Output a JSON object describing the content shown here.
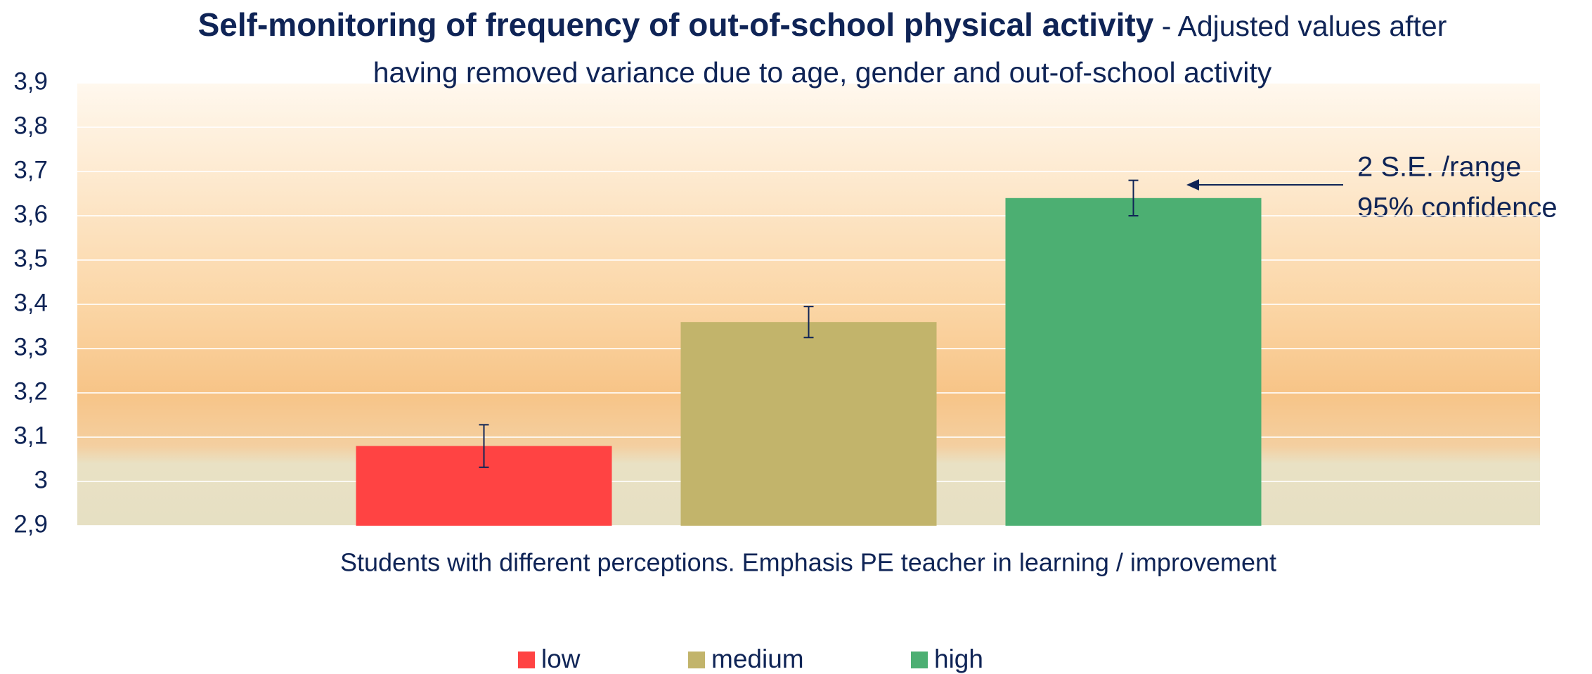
{
  "chart_data": {
    "type": "bar",
    "title": "Self-monitoring of frequency of out-of-school physical activity",
    "subtitle": "- Adjusted values after having removed variance due to age, gender and out-of-school activity",
    "x_label": "Students with different perceptions. Emphasis PE teacher in learning / improvement",
    "annotation": [
      "2 S.E. /range",
      "95% confidence"
    ],
    "series": [
      {
        "name": "low",
        "color": "#ff4343",
        "values": [
          3.08
        ],
        "errors": [
          0.048
        ]
      },
      {
        "name": "medium",
        "color": "#c2b46b",
        "values": [
          3.36
        ],
        "errors": [
          0.035
        ]
      },
      {
        "name": "high",
        "color": "#4caf72",
        "values": [
          3.64
        ],
        "errors": [
          0.04
        ]
      }
    ],
    "ylim": [
      2.9,
      3.9
    ],
    "yticks": [
      {
        "value": 2.9,
        "label": "2,9"
      },
      3,
      {
        "value": 3.1,
        "label": "3,1"
      },
      {
        "value": 3.2,
        "label": "3,2"
      },
      {
        "value": 3.3,
        "label": "3,3"
      },
      {
        "value": 3.4,
        "label": "3,4"
      },
      {
        "value": 3.5,
        "label": "3,5"
      },
      {
        "value": 3.6,
        "label": "3,6"
      },
      {
        "value": 3.7,
        "label": "3,7"
      },
      {
        "value": 3.8,
        "label": "3,8"
      },
      {
        "value": 3.9,
        "label": "3,9"
      }
    ],
    "grid": true,
    "legend": "bottom"
  }
}
